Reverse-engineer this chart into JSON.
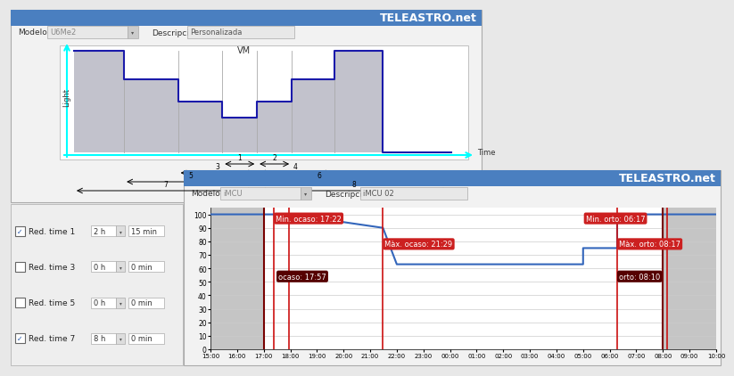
{
  "bg_color": "#e8e8e8",
  "win1": {
    "header_color": "#4a7fc0",
    "header_text": "TELEASTRO.net",
    "modelo_label": "Modelo",
    "modelo_value": "U6Me2",
    "desc_label": "Descripción",
    "desc_value": "Personalizada",
    "vm_label": "VM",
    "light_label": "Light",
    "time_label": "Time",
    "step_fill": "#c2c2cc",
    "step_line": "#1a1aaa",
    "axis_color": "#00ccee"
  },
  "win2": {
    "header_color": "#4a7fc0",
    "header_text": "TELEASTRO.net",
    "modelo_label": "Modelo",
    "modelo_value": "iMCU",
    "desc_label": "Descripción",
    "desc_value": "iMCU 02",
    "gray_color": "#c5c5c5",
    "line_color": "#3366bb",
    "xtick_labels": [
      "15:00",
      "16:00",
      "17:00",
      "18:00",
      "19:00",
      "20:00",
      "21:00",
      "22:00",
      "23:00",
      "00:00",
      "01:00",
      "02:00",
      "03:00",
      "04:00",
      "05:00",
      "06:00",
      "07:00",
      "08:00",
      "09:00",
      "10:00"
    ]
  },
  "sidebar": {
    "items": [
      {
        "label": "Red. time 1",
        "checked": true,
        "h_val": "2 h",
        "m_val": "15 min"
      },
      {
        "label": "Red. time 3",
        "checked": false,
        "h_val": "0 h",
        "m_val": "0 min"
      },
      {
        "label": "Red. time 5",
        "checked": false,
        "h_val": "0 h",
        "m_val": "0 min"
      },
      {
        "label": "Red. time 7",
        "checked": true,
        "h_val": "8 h",
        "m_val": "0 min"
      }
    ]
  }
}
